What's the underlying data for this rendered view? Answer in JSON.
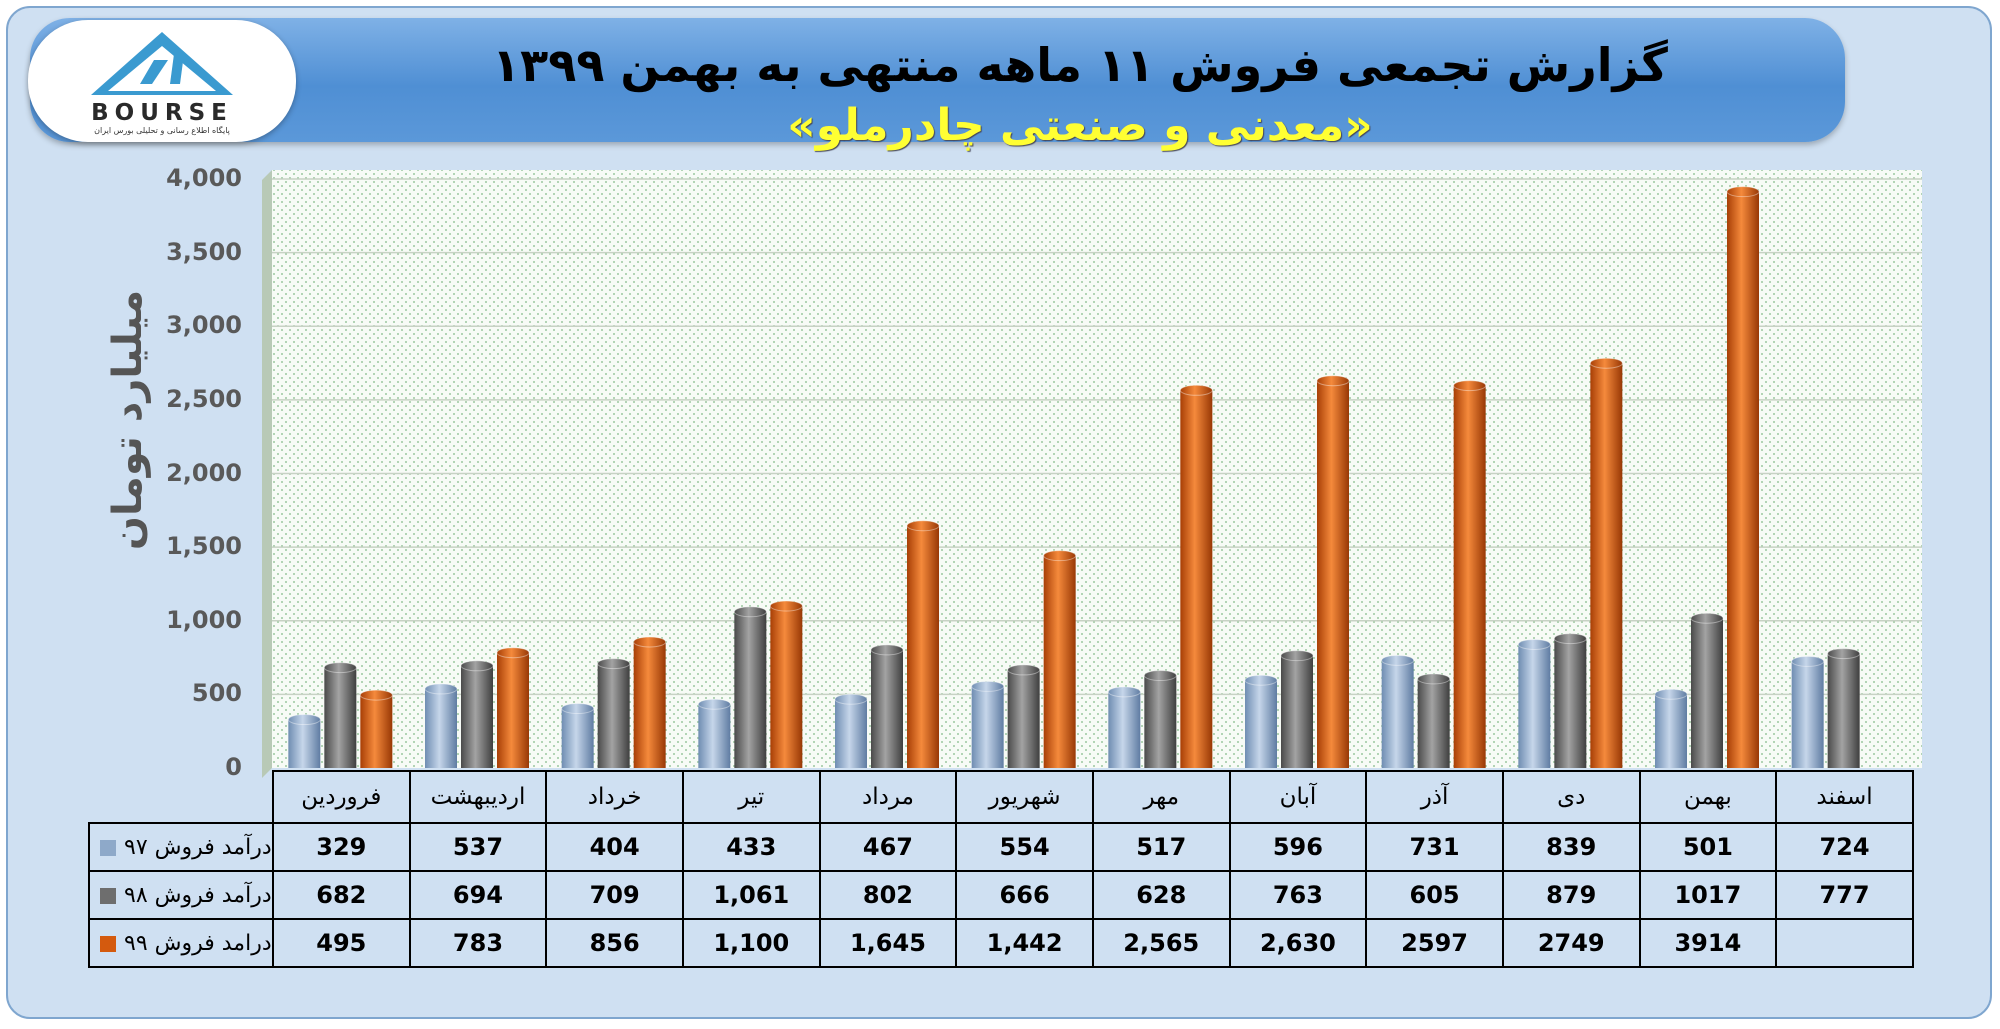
{
  "header": {
    "title": "گزارش تجمعی فروش ۱۱ ماهه منتهی به بهمن ۱۳۹۹",
    "subtitle": "«معدنی و صنعتی چادرملو»",
    "logo_text": "BOURSE",
    "logo_subtext": "پایگاه اطلاع رسانی و تحلیلی بورس ایران"
  },
  "colors": {
    "s97": "#8ea9c9",
    "s98": "#6e6e6e",
    "s99": "#d45a0e"
  },
  "chart_data": {
    "type": "bar",
    "ylabel": "میلیارد تومان",
    "ylim": [
      0,
      4000
    ],
    "y_ticks": [
      "0",
      "500",
      "1,000",
      "1,500",
      "2,000",
      "2,500",
      "3,000",
      "3,500",
      "4,000"
    ],
    "categories": [
      "فروردین",
      "اردیبهشت",
      "خرداد",
      "تیر",
      "مرداد",
      "شهریور",
      "مهر",
      "آبان",
      "آذر",
      "دی",
      "بهمن",
      "اسفند"
    ],
    "series": [
      {
        "name": "درآمد فروش ۹۷",
        "values": [
          329,
          537,
          404,
          433,
          467,
          554,
          517,
          596,
          731,
          839,
          501,
          724
        ],
        "labels": [
          "329",
          "537",
          "404",
          "433",
          "467",
          "554",
          "517",
          "596",
          "731",
          "839",
          "501",
          "724"
        ]
      },
      {
        "name": "درآمد فروش ۹۸",
        "values": [
          682,
          694,
          709,
          1061,
          802,
          666,
          628,
          763,
          605,
          879,
          1017,
          777
        ],
        "labels": [
          "682",
          "694",
          "709",
          "1,061",
          "802",
          "666",
          "628",
          "763",
          "605",
          "879",
          "1017",
          "777"
        ]
      },
      {
        "name": "درامد فروش ۹۹",
        "values": [
          495,
          783,
          856,
          1100,
          1645,
          1442,
          2565,
          2630,
          2597,
          2749,
          3914,
          null
        ],
        "labels": [
          "495",
          "783",
          "856",
          "1,100",
          "1,645",
          "1,442",
          "2,565",
          "2,630",
          "2597",
          "2749",
          "3914",
          ""
        ]
      }
    ]
  }
}
